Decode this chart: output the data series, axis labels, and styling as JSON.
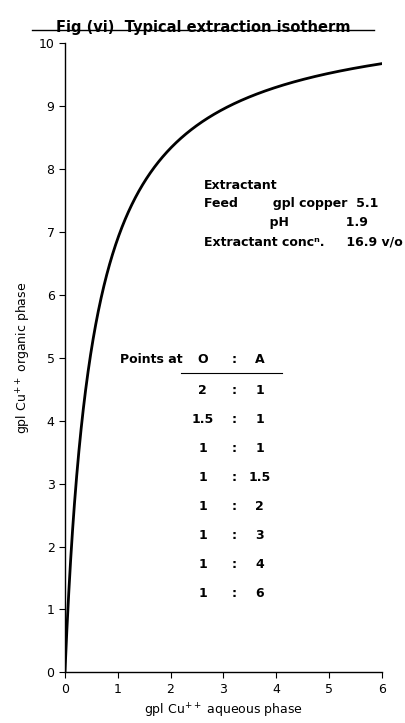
{
  "title": "Fig (vi)  Typical extraction isotherm",
  "xlabel": "gpl Cu$^{++}$ aqueous phase",
  "ylabel": "gpl Cu$^{++}$ organic phase",
  "xlim": [
    0,
    6
  ],
  "ylim": [
    0,
    10
  ],
  "xticks": [
    0,
    1,
    2,
    3,
    4,
    5,
    6
  ],
  "yticks": [
    0,
    1,
    2,
    3,
    4,
    5,
    6,
    7,
    8,
    9,
    10
  ],
  "curve_color": "#000000",
  "background_color": "#ffffff",
  "isotherm_a": 30,
  "isotherm_b": 2.8,
  "ann_extractant_x": 0.44,
  "ann_extractant_y": 0.76,
  "ann_feed_line1": "Extractant",
  "ann_feed_line2": "Feed        gpl copper  5.1",
  "ann_feed_line3": "               pH             1.9",
  "ann_feed_line4": "Extractant concⁿ.     16.9 v/o",
  "points_label": "Points at",
  "table_rows": [
    [
      "2",
      ":",
      "1"
    ],
    [
      "1.5",
      ":",
      "1"
    ],
    [
      "1",
      ":",
      "1"
    ],
    [
      "1",
      ":",
      "1.5"
    ],
    [
      "1",
      ":",
      "2"
    ],
    [
      "1",
      ":",
      "3"
    ],
    [
      "1",
      ":",
      "4"
    ],
    [
      "1",
      ":",
      "6"
    ]
  ]
}
